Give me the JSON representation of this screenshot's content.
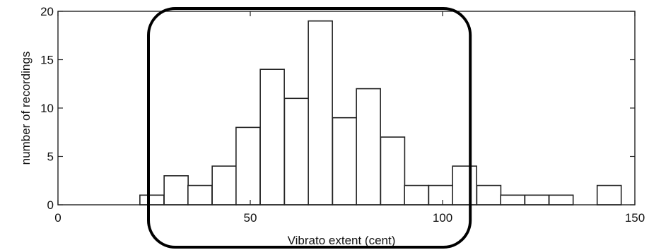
{
  "chart_data": {
    "type": "bar",
    "xlabel": "Vibrato extent (cent)",
    "ylabel": "number of recordings",
    "xlim": [
      0,
      150
    ],
    "ylim": [
      0,
      20
    ],
    "x_ticks": [
      "0",
      "50",
      "100",
      "150"
    ],
    "y_ticks": [
      "0",
      "5",
      "10",
      "15",
      "20"
    ],
    "bin_width": 6.25,
    "bins": [
      {
        "x": 21.3,
        "value": 1
      },
      {
        "x": 27.6,
        "value": 3
      },
      {
        "x": 33.8,
        "value": 2
      },
      {
        "x": 40.1,
        "value": 4
      },
      {
        "x": 46.3,
        "value": 8
      },
      {
        "x": 52.6,
        "value": 14
      },
      {
        "x": 58.9,
        "value": 11
      },
      {
        "x": 65.1,
        "value": 19
      },
      {
        "x": 71.4,
        "value": 9
      },
      {
        "x": 77.6,
        "value": 12
      },
      {
        "x": 83.9,
        "value": 7
      },
      {
        "x": 90.1,
        "value": 2
      },
      {
        "x": 96.4,
        "value": 2
      },
      {
        "x": 102.6,
        "value": 4
      },
      {
        "x": 108.9,
        "value": 2
      },
      {
        "x": 115.1,
        "value": 1
      },
      {
        "x": 121.4,
        "value": 1
      },
      {
        "x": 127.7,
        "value": 1
      },
      {
        "x": 140.2,
        "value": 2
      }
    ],
    "grid": false,
    "annotation": {
      "shape": "rounded-rectangle",
      "x_range": [
        25,
        105
      ],
      "color": "#000000"
    }
  }
}
